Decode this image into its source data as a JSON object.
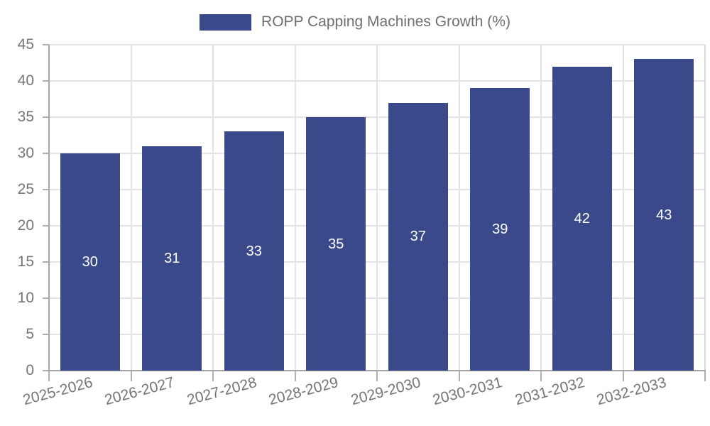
{
  "chart_data": {
    "type": "bar",
    "title": "ROPP Capping Machines Growth (%)",
    "legend_entries": [
      "ROPP Capping Machines Growth (%)"
    ],
    "legend_position": "top-center",
    "categories": [
      "2025-2026",
      "2026-2027",
      "2027-2028",
      "2028-2029",
      "2029-2030",
      "2030-2031",
      "2031-2032",
      "2032-2033"
    ],
    "values": [
      30,
      31,
      33,
      35,
      37,
      39,
      42,
      43
    ],
    "value_labels": [
      "30",
      "31",
      "33",
      "35",
      "37",
      "39",
      "42",
      "43"
    ],
    "xlabel": "",
    "ylabel": "",
    "ylim": [
      0,
      45
    ],
    "yticks": [
      0,
      5,
      10,
      15,
      20,
      25,
      30,
      35,
      40,
      45
    ],
    "grid": true,
    "xtick_rotation_deg": -15,
    "colors": {
      "bar": "#3A4989",
      "value_label_text": "#FFFFFF",
      "axis_text": "#757575",
      "legend_text": "#6E6E6E",
      "gridline": "#E3E3E3",
      "plot_right_border": "#D9D9D9",
      "axis_line": "#A5A5A5",
      "tick_mark": "#B0B0B0"
    }
  }
}
